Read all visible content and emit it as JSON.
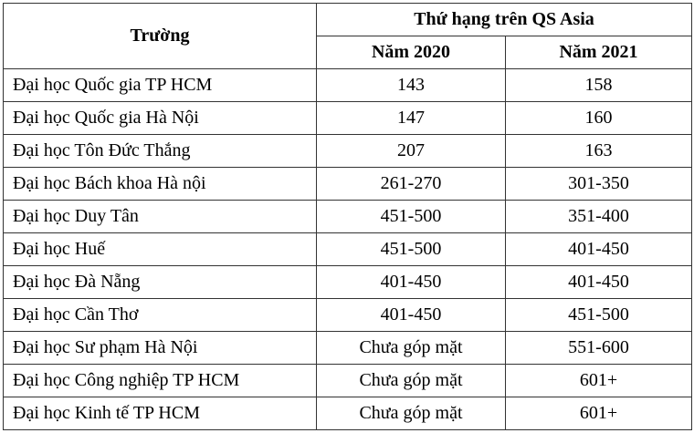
{
  "header": {
    "school": "Trường",
    "group": "Thứ hạng trên QS Asia",
    "year2020": "Năm 2020",
    "year2021": "Năm 2021"
  },
  "rows": [
    {
      "school": "Đại học Quốc gia TP HCM",
      "y2020": "143",
      "y2021": "158"
    },
    {
      "school": "Đại học Quốc gia Hà Nội",
      "y2020": "147",
      "y2021": "160"
    },
    {
      "school": "Đại học Tôn Đức Thắng",
      "y2020": "207",
      "y2021": "163"
    },
    {
      "school": "Đại học Bách khoa Hà nội",
      "y2020": "261-270",
      "y2021": "301-350"
    },
    {
      "school": "Đại học Duy Tân",
      "y2020": "451-500",
      "y2021": "351-400"
    },
    {
      "school": "Đại học Huế",
      "y2020": "451-500",
      "y2021": "401-450"
    },
    {
      "school": "Đại học Đà Nẵng",
      "y2020": "401-450",
      "y2021": "401-450"
    },
    {
      "school": "Đại học Cần Thơ",
      "y2020": "401-450",
      "y2021": "451-500"
    },
    {
      "school": "Đại học Sư phạm Hà Nội",
      "y2020": "Chưa góp mặt",
      "y2021": "551-600"
    },
    {
      "school": "Đại học Công nghiệp TP HCM",
      "y2020": "Chưa góp mặt",
      "y2021": "601+"
    },
    {
      "school": "Đại học Kinh tế TP HCM",
      "y2020": "Chưa góp mặt",
      "y2021": "601+"
    }
  ]
}
